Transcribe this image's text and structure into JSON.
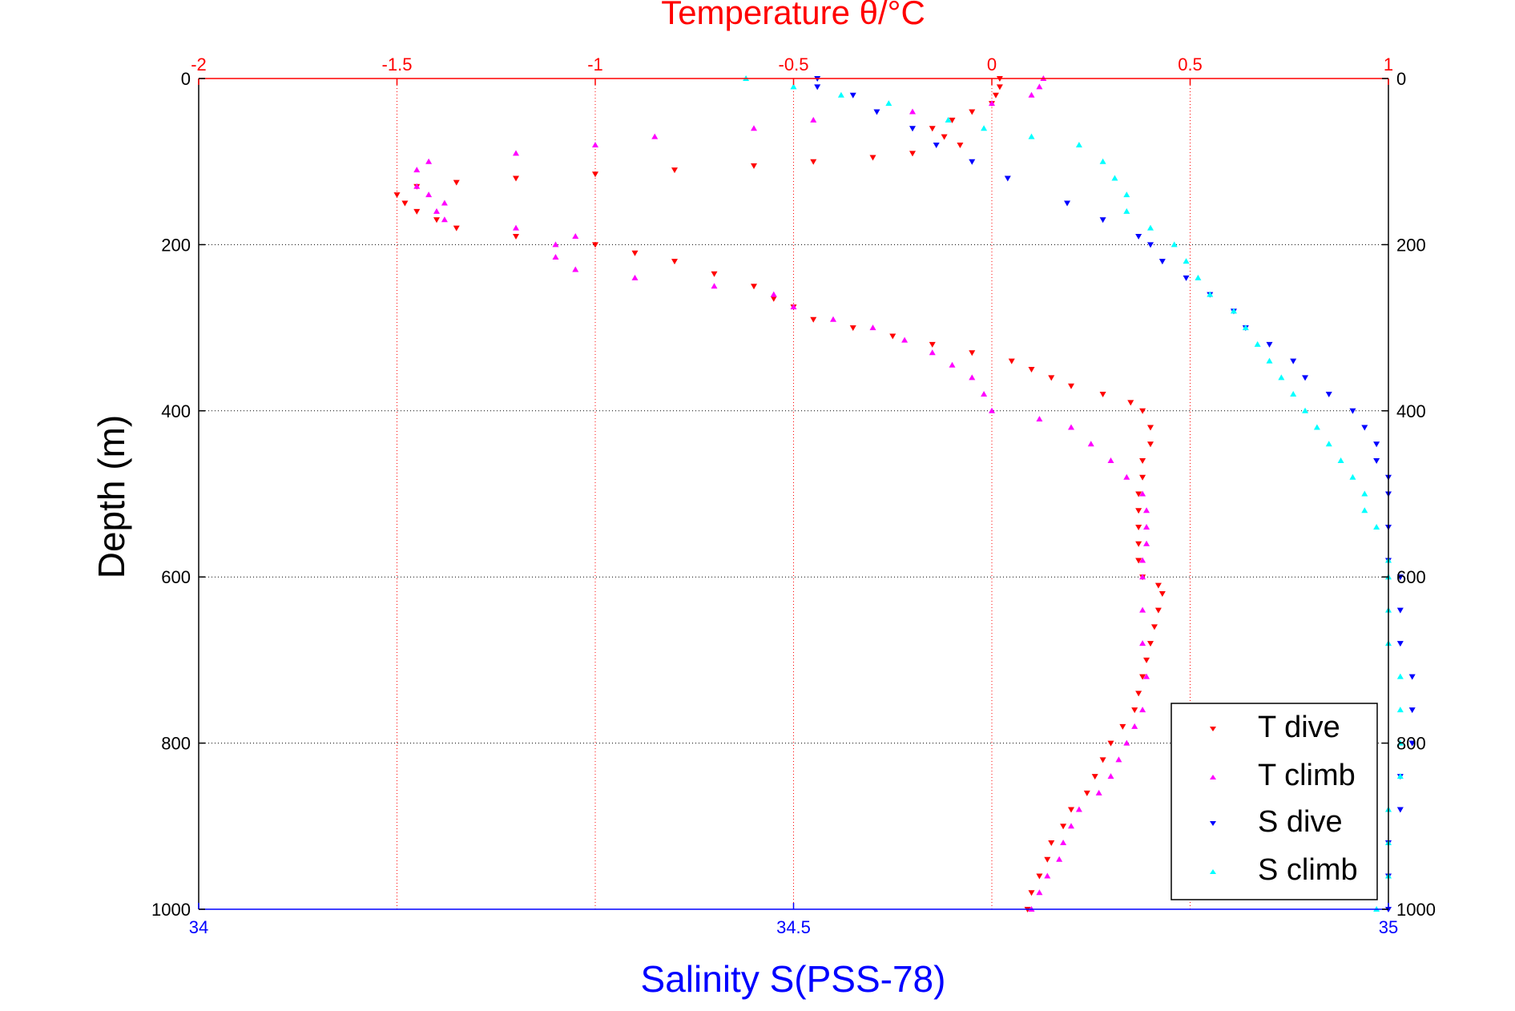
{
  "chart_data": {
    "type": "scatter",
    "title_top": "Temperature θ/°C",
    "xlabel": "Salinity S(PSS-78)",
    "ylabel": "Depth (m)",
    "top_axis": {
      "range": [
        -2,
        1
      ],
      "ticks": [
        "-2",
        "-1.5",
        "-1",
        "-0.5",
        "0",
        "0.5",
        "1"
      ],
      "color": "#ff0000"
    },
    "bottom_axis": {
      "range": [
        34,
        35
      ],
      "ticks": [
        "34",
        "34.5",
        "35"
      ],
      "color": "#0000ff"
    },
    "y_axis": {
      "range": [
        0,
        1000
      ],
      "reversed": true,
      "ticks": [
        "0",
        "200",
        "400",
        "600",
        "800",
        "1000"
      ]
    },
    "grid": true,
    "legend_position": "bottom-right",
    "series": [
      {
        "name": "T dive",
        "axis": "top",
        "color": "#ff0000",
        "marker": "triangle-down",
        "points": [
          [
            0.02,
            0
          ],
          [
            0.02,
            10
          ],
          [
            0.01,
            20
          ],
          [
            0.0,
            30
          ],
          [
            -0.05,
            40
          ],
          [
            -0.1,
            50
          ],
          [
            -0.15,
            60
          ],
          [
            -0.12,
            70
          ],
          [
            -0.08,
            80
          ],
          [
            -0.2,
            90
          ],
          [
            -0.3,
            95
          ],
          [
            -0.45,
            100
          ],
          [
            -0.6,
            105
          ],
          [
            -0.8,
            110
          ],
          [
            -1.0,
            115
          ],
          [
            -1.2,
            120
          ],
          [
            -1.35,
            125
          ],
          [
            -1.45,
            130
          ],
          [
            -1.5,
            140
          ],
          [
            -1.48,
            150
          ],
          [
            -1.45,
            160
          ],
          [
            -1.4,
            170
          ],
          [
            -1.35,
            180
          ],
          [
            -1.2,
            190
          ],
          [
            -1.0,
            200
          ],
          [
            -0.9,
            210
          ],
          [
            -0.8,
            220
          ],
          [
            -0.7,
            235
          ],
          [
            -0.6,
            250
          ],
          [
            -0.55,
            265
          ],
          [
            -0.5,
            275
          ],
          [
            -0.45,
            290
          ],
          [
            -0.35,
            300
          ],
          [
            -0.25,
            310
          ],
          [
            -0.15,
            320
          ],
          [
            -0.05,
            330
          ],
          [
            0.05,
            340
          ],
          [
            0.1,
            350
          ],
          [
            0.15,
            360
          ],
          [
            0.2,
            370
          ],
          [
            0.28,
            380
          ],
          [
            0.35,
            390
          ],
          [
            0.38,
            400
          ],
          [
            0.4,
            420
          ],
          [
            0.4,
            440
          ],
          [
            0.38,
            460
          ],
          [
            0.38,
            480
          ],
          [
            0.37,
            500
          ],
          [
            0.37,
            520
          ],
          [
            0.37,
            540
          ],
          [
            0.37,
            560
          ],
          [
            0.37,
            580
          ],
          [
            0.38,
            600
          ],
          [
            0.42,
            610
          ],
          [
            0.43,
            620
          ],
          [
            0.42,
            640
          ],
          [
            0.41,
            660
          ],
          [
            0.4,
            680
          ],
          [
            0.39,
            700
          ],
          [
            0.38,
            720
          ],
          [
            0.37,
            740
          ],
          [
            0.36,
            760
          ],
          [
            0.33,
            780
          ],
          [
            0.3,
            800
          ],
          [
            0.28,
            820
          ],
          [
            0.26,
            840
          ],
          [
            0.24,
            860
          ],
          [
            0.2,
            880
          ],
          [
            0.18,
            900
          ],
          [
            0.15,
            920
          ],
          [
            0.14,
            940
          ],
          [
            0.12,
            960
          ],
          [
            0.1,
            980
          ],
          [
            0.09,
            1000
          ]
        ]
      },
      {
        "name": "T climb",
        "axis": "top",
        "color": "#ff00ff",
        "marker": "triangle-up",
        "points": [
          [
            0.13,
            0
          ],
          [
            0.12,
            10
          ],
          [
            0.1,
            20
          ],
          [
            0.0,
            30
          ],
          [
            -0.2,
            40
          ],
          [
            -0.45,
            50
          ],
          [
            -0.6,
            60
          ],
          [
            -0.85,
            70
          ],
          [
            -1.0,
            80
          ],
          [
            -1.2,
            90
          ],
          [
            -1.42,
            100
          ],
          [
            -1.45,
            110
          ],
          [
            -1.45,
            130
          ],
          [
            -1.42,
            140
          ],
          [
            -1.38,
            150
          ],
          [
            -1.4,
            160
          ],
          [
            -1.38,
            170
          ],
          [
            -1.2,
            180
          ],
          [
            -1.05,
            190
          ],
          [
            -1.1,
            200
          ],
          [
            -1.1,
            215
          ],
          [
            -1.05,
            230
          ],
          [
            -0.9,
            240
          ],
          [
            -0.7,
            250
          ],
          [
            -0.55,
            260
          ],
          [
            -0.5,
            275
          ],
          [
            -0.4,
            290
          ],
          [
            -0.3,
            300
          ],
          [
            -0.22,
            315
          ],
          [
            -0.15,
            330
          ],
          [
            -0.1,
            345
          ],
          [
            -0.05,
            360
          ],
          [
            -0.02,
            380
          ],
          [
            0.0,
            400
          ],
          [
            0.12,
            410
          ],
          [
            0.2,
            420
          ],
          [
            0.25,
            440
          ],
          [
            0.3,
            460
          ],
          [
            0.34,
            480
          ],
          [
            0.38,
            500
          ],
          [
            0.39,
            520
          ],
          [
            0.39,
            540
          ],
          [
            0.39,
            560
          ],
          [
            0.38,
            580
          ],
          [
            0.38,
            600
          ],
          [
            0.38,
            640
          ],
          [
            0.38,
            680
          ],
          [
            0.39,
            720
          ],
          [
            0.38,
            760
          ],
          [
            0.36,
            780
          ],
          [
            0.34,
            800
          ],
          [
            0.32,
            820
          ],
          [
            0.3,
            840
          ],
          [
            0.27,
            860
          ],
          [
            0.22,
            880
          ],
          [
            0.2,
            900
          ],
          [
            0.18,
            920
          ],
          [
            0.17,
            940
          ],
          [
            0.14,
            960
          ],
          [
            0.12,
            980
          ],
          [
            0.1,
            1000
          ]
        ]
      },
      {
        "name": "S dive",
        "axis": "bottom",
        "color": "#0000ff",
        "marker": "triangle-down",
        "points": [
          [
            34.52,
            0
          ],
          [
            34.52,
            10
          ],
          [
            34.55,
            20
          ],
          [
            34.57,
            40
          ],
          [
            34.6,
            60
          ],
          [
            34.62,
            80
          ],
          [
            34.65,
            100
          ],
          [
            34.68,
            120
          ],
          [
            34.73,
            150
          ],
          [
            34.76,
            170
          ],
          [
            34.79,
            190
          ],
          [
            34.8,
            200
          ],
          [
            34.81,
            220
          ],
          [
            34.83,
            240
          ],
          [
            34.85,
            260
          ],
          [
            34.87,
            280
          ],
          [
            34.88,
            300
          ],
          [
            34.9,
            320
          ],
          [
            34.92,
            340
          ],
          [
            34.93,
            360
          ],
          [
            34.95,
            380
          ],
          [
            34.97,
            400
          ],
          [
            34.98,
            420
          ],
          [
            34.99,
            440
          ],
          [
            34.99,
            460
          ],
          [
            35.0,
            480
          ],
          [
            35.0,
            500
          ],
          [
            35.0,
            540
          ],
          [
            35.0,
            580
          ],
          [
            35.01,
            600
          ],
          [
            35.01,
            640
          ],
          [
            35.01,
            680
          ],
          [
            35.02,
            720
          ],
          [
            35.02,
            760
          ],
          [
            35.02,
            800
          ],
          [
            35.01,
            840
          ],
          [
            35.01,
            880
          ],
          [
            35.0,
            920
          ],
          [
            35.0,
            960
          ],
          [
            35.0,
            1000
          ]
        ]
      },
      {
        "name": "S climb",
        "axis": "bottom",
        "color": "#00ffff",
        "marker": "triangle-up",
        "points": [
          [
            34.46,
            0
          ],
          [
            34.5,
            10
          ],
          [
            34.54,
            20
          ],
          [
            34.58,
            30
          ],
          [
            34.63,
            50
          ],
          [
            34.66,
            60
          ],
          [
            34.7,
            70
          ],
          [
            34.74,
            80
          ],
          [
            34.76,
            100
          ],
          [
            34.77,
            120
          ],
          [
            34.78,
            140
          ],
          [
            34.78,
            160
          ],
          [
            34.8,
            180
          ],
          [
            34.82,
            200
          ],
          [
            34.83,
            220
          ],
          [
            34.84,
            240
          ],
          [
            34.85,
            260
          ],
          [
            34.87,
            280
          ],
          [
            34.88,
            300
          ],
          [
            34.89,
            320
          ],
          [
            34.9,
            340
          ],
          [
            34.91,
            360
          ],
          [
            34.92,
            380
          ],
          [
            34.93,
            400
          ],
          [
            34.94,
            420
          ],
          [
            34.95,
            440
          ],
          [
            34.96,
            460
          ],
          [
            34.97,
            480
          ],
          [
            34.98,
            500
          ],
          [
            34.98,
            520
          ],
          [
            34.99,
            540
          ],
          [
            35.0,
            580
          ],
          [
            35.0,
            600
          ],
          [
            35.0,
            640
          ],
          [
            35.0,
            680
          ],
          [
            35.01,
            720
          ],
          [
            35.01,
            760
          ],
          [
            35.01,
            800
          ],
          [
            35.01,
            840
          ],
          [
            35.0,
            880
          ],
          [
            35.0,
            920
          ],
          [
            35.0,
            960
          ],
          [
            34.99,
            1000
          ]
        ]
      }
    ],
    "legend": [
      "T dive",
      "T climb",
      "S dive",
      "S climb"
    ]
  }
}
